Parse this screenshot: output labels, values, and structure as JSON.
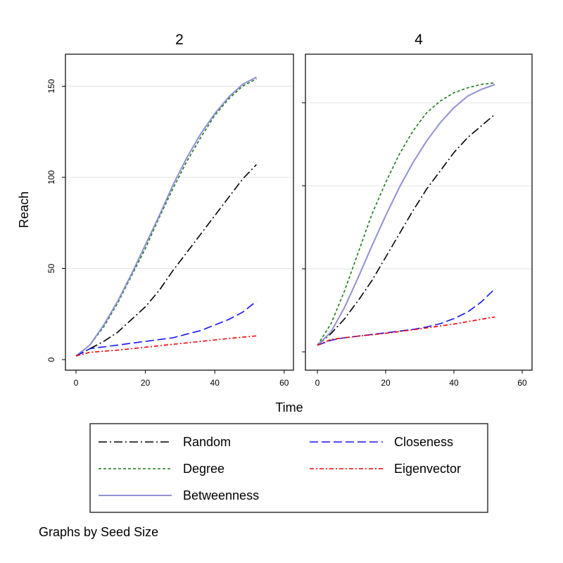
{
  "chart_data": {
    "type": "line",
    "xlabel": "Time",
    "ylabel": "Reach",
    "note": "Graphs by Seed Size",
    "xlim": [
      0,
      60
    ],
    "ylim": [
      0,
      165
    ],
    "xticks": [
      0,
      20,
      40,
      60
    ],
    "yticks": [
      0,
      50,
      100,
      150
    ],
    "grid": true,
    "legend_position": "bottom",
    "legend_columns": 2,
    "series_styles": {
      "Random": {
        "color": "#000000",
        "dash": "12,4,2,4"
      },
      "Degree": {
        "color": "#1a7a1a",
        "dash": "4,3"
      },
      "Betweenness": {
        "color": "#8f8fd6",
        "dash": ""
      },
      "Closeness": {
        "color": "#1414ff",
        "dash": "12,5"
      },
      "Eigenvector": {
        "color": "#ff0000",
        "dash": "6,3,2,3"
      }
    },
    "legend_order": [
      "Random",
      "Closeness",
      "Degree",
      "Eigenvector",
      "Betweenness"
    ],
    "panels": [
      {
        "title": "2",
        "series": [
          {
            "name": "Random",
            "x": [
              0,
              4,
              8,
              12,
              16,
              20,
              24,
              28,
              32,
              36,
              40,
              44,
              48,
              52
            ],
            "y": [
              2,
              6,
              10,
              15,
              22,
              29,
              38,
              49,
              59,
              69,
              79,
              89,
              99,
              107
            ]
          },
          {
            "name": "Degree",
            "x": [
              0,
              4,
              8,
              12,
              16,
              20,
              24,
              28,
              32,
              36,
              40,
              44,
              48,
              52
            ],
            "y": [
              2,
              8,
              18,
              31,
              46,
              61,
              78,
              94,
              109,
              122,
              134,
              143,
              150,
              154
            ]
          },
          {
            "name": "Betweenness",
            "x": [
              0,
              4,
              8,
              12,
              16,
              20,
              24,
              28,
              32,
              36,
              40,
              44,
              48,
              52
            ],
            "y": [
              2,
              8,
              19,
              32,
              47,
              63,
              79,
              96,
              111,
              124,
              135,
              144,
              151,
              155
            ]
          },
          {
            "name": "Closeness",
            "x": [
              0,
              4,
              8,
              12,
              16,
              20,
              24,
              28,
              32,
              36,
              40,
              44,
              48,
              52
            ],
            "y": [
              2,
              6,
              7,
              8,
              9,
              10,
              11,
              12,
              14,
              16,
              19,
              22,
              26,
              32
            ]
          },
          {
            "name": "Eigenvector",
            "x": [
              0,
              4,
              8,
              12,
              16,
              20,
              24,
              28,
              32,
              36,
              40,
              44,
              48,
              52
            ],
            "y": [
              2,
              4,
              4.6,
              5.2,
              6,
              6.8,
              7.6,
              8.4,
              9.2,
              10,
              10.8,
              11.6,
              12.3,
              13
            ]
          }
        ]
      },
      {
        "title": "4",
        "series": [
          {
            "name": "Random",
            "x": [
              0,
              4,
              8,
              12,
              16,
              20,
              24,
              28,
              32,
              36,
              40,
              44,
              48,
              52
            ],
            "y": [
              4,
              11,
              20,
              31,
              43,
              57,
              71,
              85,
              98,
              109,
              120,
              129,
              136,
              143
            ]
          },
          {
            "name": "Degree",
            "x": [
              0,
              4,
              8,
              12,
              16,
              20,
              24,
              28,
              32,
              36,
              40,
              44,
              48,
              52
            ],
            "y": [
              4,
              17,
              37,
              60,
              83,
              102,
              119,
              133,
              144,
              151,
              156,
              159,
              161,
              162
            ]
          },
          {
            "name": "Betweenness",
            "x": [
              0,
              4,
              8,
              12,
              16,
              20,
              24,
              28,
              32,
              36,
              40,
              44,
              48,
              52
            ],
            "y": [
              4,
              12,
              27,
              45,
              64,
              82,
              99,
              114,
              127,
              138,
              147,
              154,
              158,
              161
            ]
          },
          {
            "name": "Closeness",
            "x": [
              0,
              4,
              8,
              12,
              16,
              20,
              24,
              28,
              32,
              36,
              40,
              44,
              48,
              52
            ],
            "y": [
              4,
              7,
              8.5,
              9.5,
              10.5,
              11.5,
              12.5,
              13.5,
              15,
              17,
              20,
              24,
              30,
              38
            ]
          },
          {
            "name": "Eigenvector",
            "x": [
              0,
              4,
              8,
              12,
              16,
              20,
              24,
              28,
              32,
              36,
              40,
              44,
              48,
              52
            ],
            "y": [
              4,
              7.5,
              8.5,
              9.5,
              10.3,
              11.2,
              12.2,
              13.3,
              14.4,
              15.6,
              16.8,
              18.2,
              19.6,
              21
            ]
          }
        ]
      }
    ]
  }
}
